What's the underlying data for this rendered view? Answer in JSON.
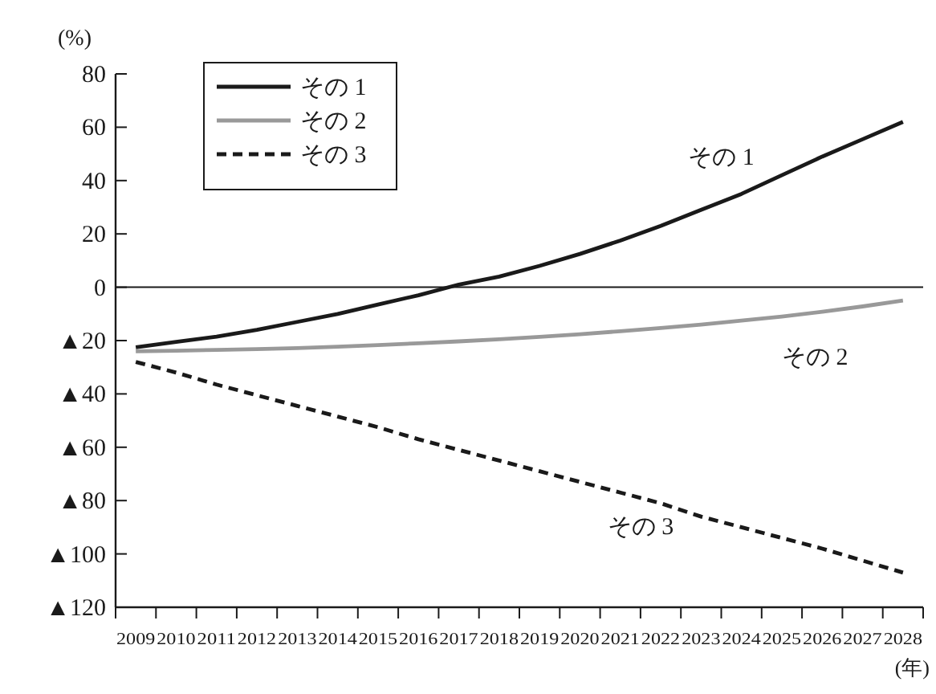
{
  "chart_data": {
    "type": "line",
    "ylabel": "(%)",
    "xlabel": "(年)",
    "categories": [
      "2009",
      "2010",
      "2011",
      "2012",
      "2013",
      "2014",
      "2015",
      "2016",
      "2017",
      "2018",
      "2019",
      "2020",
      "2021",
      "2022",
      "2023",
      "2024",
      "2025",
      "2026",
      "2027",
      "2028"
    ],
    "series": [
      {
        "name": "その 1",
        "color": "#1a1a1a",
        "line_style": "solid",
        "values": [
          -22.5,
          -20.5,
          -18.5,
          -16,
          -13,
          -10,
          -6.5,
          -3,
          1,
          4,
          8,
          12.5,
          17.5,
          23,
          29,
          35,
          42,
          49,
          55.5,
          62
        ]
      },
      {
        "name": "その 2",
        "color": "#999999",
        "line_style": "solid",
        "values": [
          -24,
          -23.8,
          -23.5,
          -23.2,
          -22.8,
          -22.3,
          -21.7,
          -21,
          -20.3,
          -19.5,
          -18.6,
          -17.6,
          -16.5,
          -15.3,
          -14,
          -12.5,
          -11,
          -9.2,
          -7.2,
          -5
        ]
      },
      {
        "name": "その 3",
        "color": "#1a1a1a",
        "line_style": "dashed",
        "values": [
          -28,
          -32,
          -36.5,
          -40.5,
          -44.5,
          -48.5,
          -52.5,
          -57,
          -61,
          -65,
          -69,
          -73,
          -77,
          -81,
          -86,
          -90,
          -94,
          -98,
          -102.5,
          -107
        ]
      }
    ],
    "ylim": [
      -120,
      80
    ],
    "yticks": [
      80,
      60,
      40,
      20,
      0,
      {
        "value": -20,
        "label": "▲20"
      },
      {
        "value": -40,
        "label": "▲40"
      },
      {
        "value": -60,
        "label": "▲60"
      },
      {
        "value": -80,
        "label": "▲80"
      },
      {
        "value": -100,
        "label": "▲100"
      },
      {
        "value": -120,
        "label": "▲120"
      }
    ],
    "ref_lines": [
      {
        "axis": "y",
        "value": 0,
        "color": "#1a1a1a"
      }
    ],
    "legend": "top left",
    "annotations": [
      "その 1",
      "その 2",
      "その 3"
    ]
  }
}
